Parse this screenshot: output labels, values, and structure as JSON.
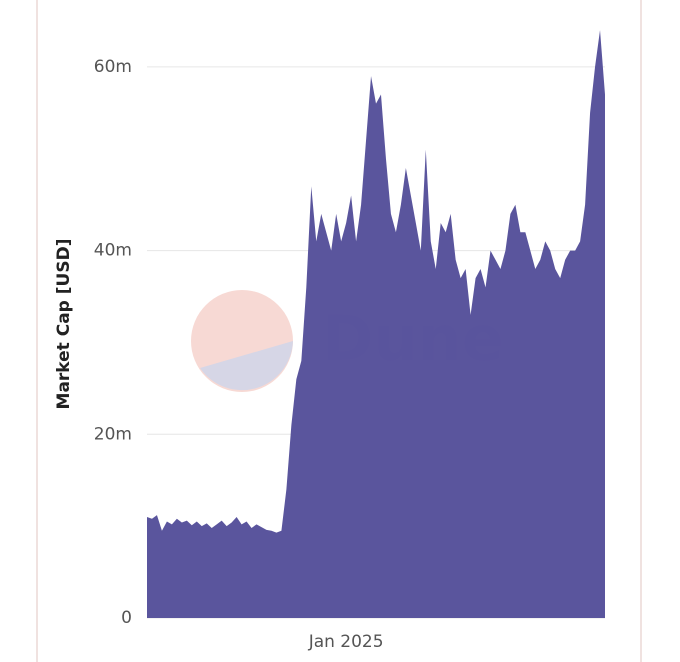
{
  "chart_data": {
    "type": "area",
    "y_label": "Market Cap [USD]",
    "watermark": "Dune",
    "color": "#554f9a",
    "grid": true,
    "ylim": [
      0,
      65000000
    ],
    "yticks": [
      0,
      {
        "value": 20000000,
        "label": "20m"
      },
      {
        "value": 40000000,
        "label": "40m"
      },
      {
        "value": 60000000,
        "label": "60m"
      }
    ],
    "categories": [
      null,
      null,
      null,
      null,
      null,
      null,
      null,
      null,
      null,
      null,
      null,
      null,
      null,
      null,
      null,
      null,
      null,
      null,
      null,
      null,
      null,
      null,
      null,
      null,
      null,
      null,
      null,
      null,
      null,
      null,
      null,
      null,
      null,
      null,
      null,
      null,
      null,
      null,
      null,
      null,
      "Jan 2025",
      null,
      null,
      null,
      null,
      null,
      null,
      null,
      null,
      null,
      null,
      null,
      null,
      null,
      null,
      null,
      null,
      null,
      null,
      null,
      null,
      null,
      null,
      null,
      null,
      null,
      null,
      null,
      null,
      null,
      null,
      null,
      null,
      null,
      null,
      null,
      null,
      null,
      null,
      null,
      null,
      null,
      null,
      null,
      null,
      null,
      null,
      null,
      null,
      null,
      null,
      null,
      null
    ],
    "values": [
      11000000,
      10800000,
      11200000,
      9500000,
      10500000,
      10200000,
      10800000,
      10400000,
      10600000,
      10100000,
      10500000,
      10000000,
      10300000,
      9800000,
      10200000,
      10600000,
      10000000,
      10400000,
      11000000,
      10200000,
      10500000,
      9800000,
      10200000,
      9900000,
      9600000,
      9500000,
      9300000,
      9500000,
      14000000,
      21000000,
      26000000,
      28000000,
      36000000,
      47000000,
      41000000,
      44000000,
      42000000,
      40000000,
      44000000,
      41000000,
      43000000,
      46000000,
      41000000,
      45000000,
      52000000,
      59000000,
      56000000,
      57000000,
      50000000,
      44000000,
      42000000,
      45000000,
      49000000,
      46000000,
      43000000,
      40000000,
      51000000,
      41000000,
      38000000,
      43000000,
      42000000,
      44000000,
      39000000,
      37000000,
      38000000,
      33000000,
      37000000,
      38000000,
      36000000,
      40000000,
      39000000,
      38000000,
      40000000,
      44000000,
      45000000,
      42000000,
      42000000,
      40000000,
      38000000,
      39000000,
      41000000,
      40000000,
      38000000,
      37000000,
      39000000,
      40000000,
      40000000,
      41000000,
      45000000,
      55000000,
      60000000,
      64000000,
      57000000
    ]
  }
}
